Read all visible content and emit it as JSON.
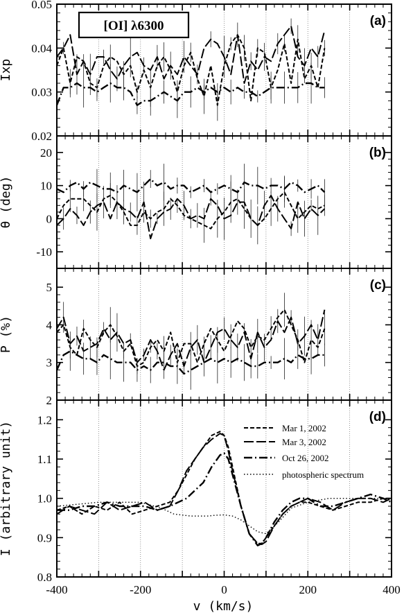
{
  "chart_data": {
    "type": "line",
    "title": "[OI] λ6300",
    "xlabel": "v (km/s)",
    "xlim": [
      -400,
      400
    ],
    "x_ticks": [
      "-400",
      "-200",
      "0",
      "200",
      "400"
    ],
    "vertical_guides": [
      -300,
      -200,
      -100,
      0,
      100,
      200,
      300
    ],
    "legend": {
      "placement": "inside-top-right of panel (d)",
      "entries": [
        {
          "label": "Mar 1, 2002",
          "style": "short-dash"
        },
        {
          "label": "Mar 3, 2002",
          "style": "long-dash"
        },
        {
          "label": "Oct 26, 2002",
          "style": "dash-dot"
        },
        {
          "label": "photospheric spectrum",
          "style": "dotted"
        }
      ]
    },
    "panels": [
      {
        "id": "a",
        "panel_label": "(a)",
        "ylabel": "Ixp",
        "ylim": [
          0.02,
          0.05
        ],
        "y_ticks": [
          "0.02",
          "0.03",
          "0.04",
          "0.05"
        ],
        "x_step": 16,
        "series": [
          {
            "style": "short-dash",
            "start": -400,
            "values": [
              0.036,
              0.04,
              0.032,
              0.038,
              0.037,
              0.032,
              0.031,
              0.036,
              0.038,
              0.037,
              0.034,
              0.036,
              0.03,
              0.035,
              0.031,
              0.036,
              0.038,
              0.035,
              0.03,
              0.036,
              0.039,
              0.033,
              0.029,
              0.036,
              0.027,
              0.036,
              0.041,
              0.043,
              0.04,
              0.028,
              0.04,
              0.039,
              0.031,
              0.035,
              0.041,
              0.032,
              0.042,
              0.033,
              0.036,
              0.031,
              0.04
            ]
          },
          {
            "style": "long-dash",
            "start": -400,
            "values": [
              0.038,
              0.04,
              0.043,
              0.034,
              0.037,
              0.034,
              0.038,
              0.038,
              0.035,
              0.033,
              0.036,
              0.038,
              0.039,
              0.036,
              0.035,
              0.038,
              0.033,
              0.036,
              0.034,
              0.038,
              0.036,
              0.034,
              0.04,
              0.042,
              0.041,
              0.038,
              0.034,
              0.043,
              0.032,
              0.037,
              0.035,
              0.038,
              0.037,
              0.041,
              0.043,
              0.045,
              0.038,
              0.036,
              0.04,
              0.038,
              0.044
            ]
          },
          {
            "style": "dash-dot",
            "start": -400,
            "values": [
              0.027,
              0.031,
              0.031,
              0.032,
              0.031,
              0.031,
              0.03,
              0.031,
              0.032,
              0.031,
              0.031,
              0.03,
              0.027,
              0.028,
              0.028,
              0.029,
              0.03,
              0.029,
              0.028,
              0.03,
              0.03,
              0.031,
              0.03,
              0.031,
              0.03,
              0.031,
              0.03,
              0.031,
              0.03,
              0.03,
              0.029,
              0.03,
              0.031,
              0.031,
              0.031,
              0.031,
              0.031,
              0.032,
              0.032,
              0.031,
              0.031
            ]
          }
        ]
      },
      {
        "id": "b",
        "panel_label": "(b)",
        "ylabel": "θ (deg)",
        "ylim": [
          -15,
          25
        ],
        "y_ticks": [
          "-10",
          "0",
          "10",
          "20"
        ],
        "x_step": 16,
        "series": [
          {
            "style": "short-dash",
            "start": -400,
            "values": [
              0,
              4,
              6,
              6,
              6,
              4,
              2,
              6,
              7,
              5,
              2,
              -2,
              -2,
              2,
              0,
              2,
              3,
              6,
              4,
              1,
              0,
              -1,
              -2,
              -3,
              0,
              2,
              5,
              6,
              3,
              0,
              -2,
              0,
              3,
              6,
              8,
              4,
              0,
              2,
              4,
              3,
              4
            ]
          },
          {
            "style": "long-dash",
            "start": -400,
            "values": [
              -2,
              0,
              3,
              1,
              -2,
              2,
              4,
              5,
              0,
              5,
              3,
              2,
              0,
              5,
              -6,
              0,
              2,
              3,
              6,
              4,
              0,
              1,
              0,
              6,
              4,
              0,
              1,
              5,
              5,
              0,
              -2,
              4,
              7,
              3,
              0,
              -3,
              5,
              0,
              3,
              1,
              3
            ]
          },
          {
            "style": "dash-dot",
            "start": -400,
            "values": [
              9,
              8,
              10,
              11,
              9,
              11,
              10,
              9,
              9,
              8,
              10,
              9,
              8,
              10,
              12,
              10,
              11,
              9,
              10,
              10,
              8,
              9,
              10,
              8,
              9,
              10,
              9,
              8,
              11,
              10,
              10,
              9,
              10,
              10,
              9,
              11,
              10,
              8,
              9,
              10,
              8
            ]
          }
        ]
      },
      {
        "id": "c",
        "panel_label": "(c)",
        "ylabel": "P (%)",
        "ylim": [
          2,
          5.5
        ],
        "y_ticks": [
          "2",
          "3",
          "4",
          "5"
        ],
        "x_step": 16,
        "series": [
          {
            "style": "short-dash",
            "start": -400,
            "values": [
              3.8,
              4.0,
              3.4,
              3.2,
              3.9,
              3.6,
              3.4,
              3.8,
              4.0,
              3.7,
              3.3,
              3.5,
              2.9,
              3.0,
              3.4,
              3.6,
              3.3,
              3.8,
              3.0,
              3.5,
              3.5,
              3.0,
              3.5,
              3.9,
              3.6,
              3.3,
              3.7,
              4.1,
              3.9,
              3.4,
              3.7,
              3.6,
              3.9,
              4.2,
              4.4,
              4.0,
              3.6,
              3.0,
              3.6,
              3.4,
              3.9
            ]
          },
          {
            "style": "long-dash",
            "start": -400,
            "values": [
              3.9,
              4.2,
              3.5,
              3.7,
              3.3,
              3.4,
              3.5,
              3.9,
              3.6,
              3.8,
              3.5,
              3.6,
              3.0,
              3.2,
              3.6,
              3.3,
              2.8,
              3.2,
              3.5,
              2.9,
              3.4,
              3.6,
              3.0,
              3.4,
              3.8,
              3.9,
              3.6,
              3.4,
              3.8,
              3.1,
              3.8,
              3.4,
              3.6,
              4.1,
              3.8,
              4.2,
              3.5,
              3.7,
              4.0,
              3.6,
              4.4
            ]
          },
          {
            "style": "dash-dot",
            "start": -400,
            "values": [
              2.8,
              3.2,
              3.3,
              3.2,
              3.1,
              3.1,
              3.0,
              3.2,
              3.1,
              3.0,
              3.0,
              3.0,
              2.8,
              2.9,
              2.8,
              3.0,
              3.0,
              2.9,
              2.9,
              2.7,
              2.8,
              2.9,
              3.0,
              3.1,
              3.0,
              3.1,
              3.0,
              3.1,
              3.0,
              2.9,
              2.9,
              3.0,
              3.0,
              3.0,
              3.1,
              3.0,
              3.2,
              3.1,
              3.1,
              3.2,
              3.2
            ]
          }
        ]
      },
      {
        "id": "d",
        "panel_label": "(d)",
        "ylabel": "I (arbitrary unit)",
        "ylim": [
          0.8,
          1.25
        ],
        "y_ticks": [
          "0.8",
          "0.9",
          "1.0",
          "1.1",
          "1.2"
        ],
        "series": [
          {
            "name": "Mar 1, 2002",
            "style": "short-dash",
            "x": [
              -400,
              -370,
              -340,
              -310,
              -280,
              -250,
              -220,
              -190,
              -160,
              -130,
              -110,
              -90,
              -70,
              -50,
              -30,
              -10,
              0,
              10,
              20,
              40,
              60,
              80,
              90,
              100,
              120,
              140,
              160,
              180,
              200,
              230,
              260,
              290,
              320,
              350,
              380,
              400
            ],
            "y": [
              0.97,
              0.98,
              0.96,
              0.98,
              0.97,
              0.99,
              0.96,
              0.97,
              0.98,
              0.99,
              1.02,
              1.06,
              1.1,
              1.13,
              1.16,
              1.17,
              1.16,
              1.13,
              1.08,
              0.98,
              0.91,
              0.885,
              0.885,
              0.9,
              0.93,
              0.96,
              0.98,
              0.99,
              0.99,
              0.98,
              0.97,
              0.98,
              0.99,
              0.99,
              1.0,
              1.0
            ]
          },
          {
            "name": "Mar 3, 2002",
            "style": "long-dash",
            "x": [
              -400,
              -370,
              -340,
              -310,
              -280,
              -250,
              -220,
              -190,
              -160,
              -130,
              -110,
              -90,
              -70,
              -50,
              -30,
              -10,
              0,
              10,
              20,
              40,
              60,
              80,
              90,
              100,
              120,
              140,
              160,
              180,
              200,
              230,
              260,
              290,
              320,
              350,
              380,
              400
            ],
            "y": [
              0.96,
              0.98,
              0.97,
              0.96,
              0.99,
              0.97,
              0.98,
              0.99,
              0.97,
              0.98,
              1.02,
              1.07,
              1.1,
              1.13,
              1.15,
              1.165,
              1.16,
              1.12,
              1.07,
              0.98,
              0.91,
              0.885,
              0.883,
              0.89,
              0.93,
              0.96,
              0.98,
              0.99,
              1.0,
              0.99,
              0.97,
              0.99,
              1.0,
              1.0,
              0.99,
              1.0
            ]
          },
          {
            "name": "Oct 26, 2002",
            "style": "dash-dot",
            "x": [
              -400,
              -370,
              -340,
              -310,
              -280,
              -250,
              -220,
              -190,
              -160,
              -130,
              -110,
              -90,
              -70,
              -50,
              -30,
              -10,
              0,
              10,
              20,
              40,
              60,
              80,
              90,
              100,
              120,
              140,
              160,
              180,
              200,
              230,
              260,
              290,
              320,
              350,
              380,
              400
            ],
            "y": [
              0.97,
              0.97,
              0.98,
              0.98,
              0.99,
              0.98,
              0.98,
              0.98,
              0.97,
              0.98,
              0.99,
              1.0,
              1.02,
              1.04,
              1.08,
              1.11,
              1.115,
              1.1,
              1.06,
              0.98,
              0.91,
              0.88,
              0.885,
              0.9,
              0.94,
              0.97,
              0.99,
              1.0,
              1.0,
              0.98,
              0.98,
              0.99,
              1.0,
              1.01,
              1.0,
              0.99
            ]
          },
          {
            "name": "photospheric spectrum",
            "style": "dotted",
            "x": [
              -400,
              -300,
              -200,
              -150,
              -120,
              -80,
              -40,
              -20,
              0,
              20,
              40,
              60,
              80,
              100,
              130,
              160,
              200,
              250,
              300,
              350,
              400
            ],
            "y": [
              0.98,
              0.99,
              0.99,
              0.975,
              0.96,
              0.955,
              0.955,
              0.957,
              0.958,
              0.955,
              0.945,
              0.93,
              0.915,
              0.91,
              0.94,
              0.975,
              0.99,
              1.0,
              1.0,
              1.0,
              1.0
            ]
          }
        ]
      }
    ]
  }
}
